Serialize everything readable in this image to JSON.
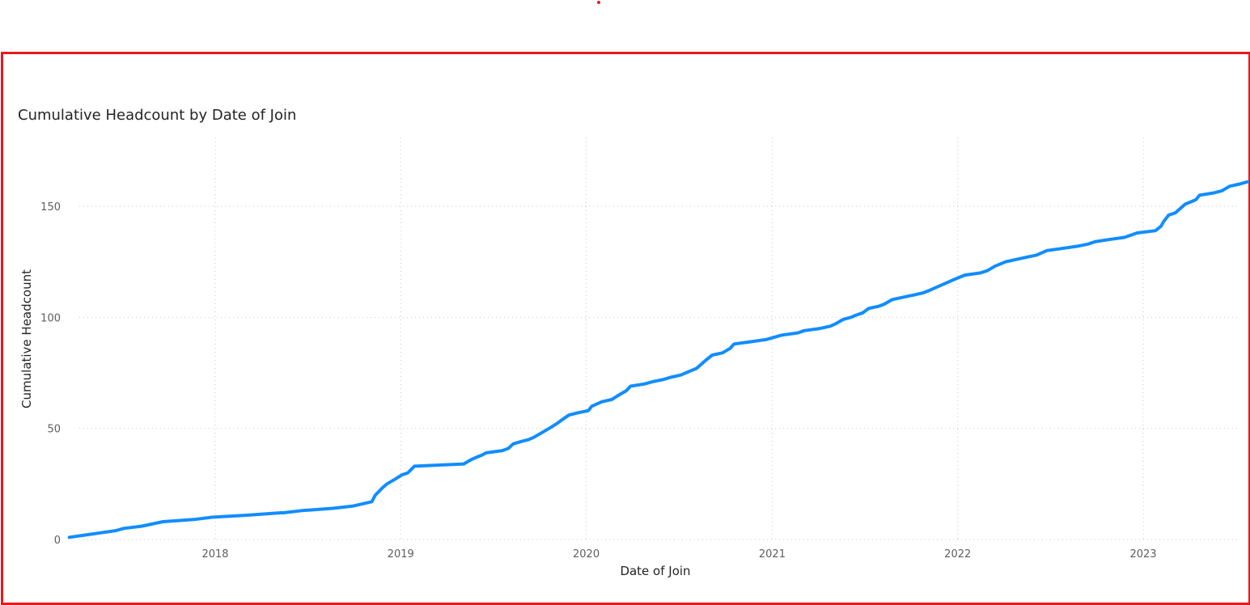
{
  "chart_data": {
    "type": "line",
    "title": "Cumulative Headcount by Date of Join",
    "xlabel": "Date of Join",
    "ylabel": "Cumulative Headcount",
    "x_ticks": [
      "2018",
      "2019",
      "2020",
      "2021",
      "2022",
      "2023"
    ],
    "y_ticks": [
      "0",
      "50",
      "100",
      "150"
    ],
    "ylim": [
      0,
      160
    ],
    "xlim": [
      "2017-03-20",
      "2023-06-15"
    ],
    "grid": true,
    "line_color": "#118dff",
    "series": [
      {
        "name": "",
        "points": [
          [
            "2017-03-20",
            1
          ],
          [
            "2017-04-20",
            2
          ],
          [
            "2017-05-20",
            3
          ],
          [
            "2017-06-20",
            4
          ],
          [
            "2017-07-05",
            5
          ],
          [
            "2017-08-10",
            6
          ],
          [
            "2017-09-20",
            8
          ],
          [
            "2017-11-20",
            9
          ],
          [
            "2017-12-25",
            10
          ],
          [
            "2018-03-10",
            11
          ],
          [
            "2018-05-10",
            12
          ],
          [
            "2018-05-15",
            12
          ],
          [
            "2018-06-20",
            13
          ],
          [
            "2018-08-20",
            14
          ],
          [
            "2018-09-28",
            15
          ],
          [
            "2018-11-05",
            17
          ],
          [
            "2018-11-12",
            20
          ],
          [
            "2018-11-25",
            23
          ],
          [
            "2018-12-05",
            25
          ],
          [
            "2018-12-20",
            27
          ],
          [
            "2019-01-03",
            29
          ],
          [
            "2019-01-15",
            30
          ],
          [
            "2019-01-28",
            33
          ],
          [
            "2019-05-05",
            34
          ],
          [
            "2019-05-20",
            36
          ],
          [
            "2019-05-30",
            37
          ],
          [
            "2019-06-10",
            38
          ],
          [
            "2019-06-18",
            39
          ],
          [
            "2019-07-20",
            40
          ],
          [
            "2019-08-01",
            41
          ],
          [
            "2019-08-10",
            43
          ],
          [
            "2019-08-25",
            44
          ],
          [
            "2019-09-10",
            45
          ],
          [
            "2019-09-20",
            46
          ],
          [
            "2019-10-05",
            48
          ],
          [
            "2019-10-20",
            50
          ],
          [
            "2019-11-03",
            52
          ],
          [
            "2019-11-15",
            54
          ],
          [
            "2019-11-28",
            56
          ],
          [
            "2019-12-15",
            57
          ],
          [
            "2020-01-05",
            58
          ],
          [
            "2020-01-12",
            60
          ],
          [
            "2020-02-01",
            62
          ],
          [
            "2020-02-20",
            63
          ],
          [
            "2020-03-05",
            65
          ],
          [
            "2020-03-20",
            67
          ],
          [
            "2020-03-28",
            69
          ],
          [
            "2020-04-25",
            70
          ],
          [
            "2020-05-10",
            71
          ],
          [
            "2020-06-01",
            72
          ],
          [
            "2020-06-15",
            73
          ],
          [
            "2020-07-05",
            74
          ],
          [
            "2020-07-25",
            76
          ],
          [
            "2020-08-05",
            77
          ],
          [
            "2020-08-15",
            79
          ],
          [
            "2020-08-25",
            81
          ],
          [
            "2020-09-05",
            83
          ],
          [
            "2020-09-25",
            84
          ],
          [
            "2020-10-10",
            86
          ],
          [
            "2020-10-18",
            88
          ],
          [
            "2020-11-20",
            89
          ],
          [
            "2020-12-20",
            90
          ],
          [
            "2021-01-20",
            92
          ],
          [
            "2021-02-20",
            93
          ],
          [
            "2021-03-05",
            94
          ],
          [
            "2021-04-05",
            95
          ],
          [
            "2021-04-25",
            96
          ],
          [
            "2021-05-05",
            97
          ],
          [
            "2021-05-20",
            99
          ],
          [
            "2021-06-05",
            100
          ],
          [
            "2021-06-15",
            101
          ],
          [
            "2021-06-28",
            102
          ],
          [
            "2021-07-10",
            104
          ],
          [
            "2021-07-30",
            105
          ],
          [
            "2021-08-10",
            106
          ],
          [
            "2021-08-25",
            108
          ],
          [
            "2021-09-15",
            109
          ],
          [
            "2021-10-05",
            110
          ],
          [
            "2021-10-25",
            111
          ],
          [
            "2021-11-05",
            112
          ],
          [
            "2021-11-15",
            113
          ],
          [
            "2021-12-05",
            115
          ],
          [
            "2021-12-25",
            117
          ],
          [
            "2022-01-15",
            119
          ],
          [
            "2022-02-15",
            120
          ],
          [
            "2022-02-28",
            121
          ],
          [
            "2022-03-15",
            123
          ],
          [
            "2022-04-05",
            125
          ],
          [
            "2022-04-25",
            126
          ],
          [
            "2022-05-15",
            127
          ],
          [
            "2022-06-05",
            128
          ],
          [
            "2022-06-15",
            129
          ],
          [
            "2022-06-25",
            130
          ],
          [
            "2022-07-25",
            131
          ],
          [
            "2022-08-25",
            132
          ],
          [
            "2022-09-15",
            133
          ],
          [
            "2022-09-28",
            134
          ],
          [
            "2022-10-25",
            135
          ],
          [
            "2022-11-25",
            136
          ],
          [
            "2022-12-20",
            138
          ],
          [
            "2023-01-25",
            139
          ],
          [
            "2023-02-05",
            141
          ],
          [
            "2023-02-10",
            143
          ],
          [
            "2023-02-20",
            146
          ],
          [
            "2023-03-05",
            147
          ],
          [
            "2023-03-15",
            149
          ],
          [
            "2023-03-25",
            151
          ],
          [
            "2023-04-05",
            152
          ],
          [
            "2023-04-15",
            153
          ],
          [
            "2023-04-22",
            155
          ],
          [
            "2023-05-20",
            156
          ],
          [
            "2023-06-05",
            157
          ],
          [
            "2023-06-20",
            159
          ],
          [
            "2023-07-10",
            160
          ],
          [
            "2023-07-25",
            161
          ]
        ]
      }
    ]
  }
}
